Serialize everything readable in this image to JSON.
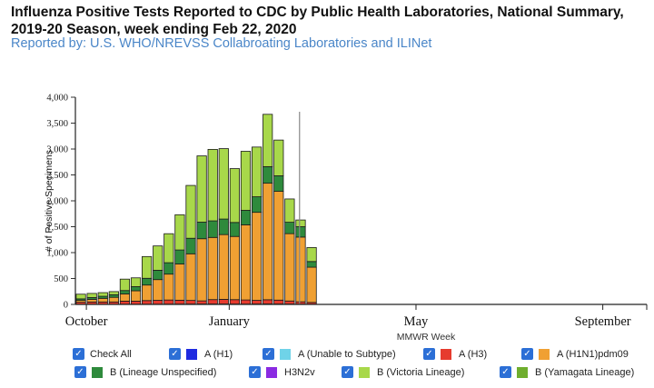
{
  "header": {
    "title": "Influenza Positive Tests Reported to CDC by Public Health Laboratories, National Summary, 2019-20 Season, week ending Feb 22, 2020",
    "subtitle": "Reported by: U.S. WHO/NREVSS Collabroating Laboratories and ILINet"
  },
  "chart_data": {
    "type": "bar",
    "stacked": true,
    "ylabel": "# of Positive Specimens",
    "xlabel": "MMWR Week",
    "ylim": [
      0,
      4000
    ],
    "yticks": [
      "0",
      "500",
      "1,000",
      "1,500",
      "2,000",
      "2,500",
      "3,000",
      "3,500",
      "4,000"
    ],
    "xticks": [
      "October",
      "January",
      "May",
      "September"
    ],
    "weeks_total": 52,
    "month_tick_weeks": [
      1,
      14,
      31,
      48
    ],
    "current_week_index": 21,
    "series": [
      {
        "name": "A (H1)",
        "color": "#1f2be0",
        "values": [
          0,
          0,
          0,
          0,
          0,
          0,
          0,
          0,
          0,
          0,
          0,
          0,
          0,
          0,
          0,
          0,
          0,
          0,
          0,
          0,
          0,
          0
        ]
      },
      {
        "name": "A (Unable to Subtype)",
        "color": "#6fd3e8",
        "values": [
          2,
          2,
          2,
          2,
          3,
          3,
          4,
          4,
          5,
          6,
          7,
          8,
          8,
          8,
          7,
          6,
          8,
          10,
          8,
          6,
          5,
          3
        ]
      },
      {
        "name": "A (H3)",
        "color": "#e63b2e",
        "values": [
          40,
          45,
          45,
          45,
          60,
          60,
          70,
          75,
          80,
          75,
          70,
          60,
          85,
          90,
          85,
          80,
          70,
          80,
          75,
          60,
          45,
          35
        ]
      },
      {
        "name": "A (H1N1)pdm09",
        "color": "#f0a033",
        "values": [
          35,
          50,
          70,
          90,
          140,
          200,
          300,
          400,
          500,
          700,
          900,
          1200,
          1200,
          1250,
          1220,
          1450,
          1700,
          2250,
          2100,
          1300,
          1250,
          680
        ]
      },
      {
        "name": "B (Lineage Unspecified)",
        "color": "#2e8a3c",
        "values": [
          30,
          35,
          40,
          50,
          65,
          80,
          130,
          180,
          220,
          270,
          300,
          320,
          320,
          300,
          270,
          280,
          300,
          320,
          300,
          220,
          200,
          110
        ]
      },
      {
        "name": "H3N2v",
        "color": "#8a2be2",
        "values": [
          0,
          0,
          0,
          0,
          0,
          0,
          0,
          0,
          0,
          0,
          0,
          0,
          0,
          0,
          0,
          0,
          0,
          0,
          0,
          0,
          0,
          0
        ]
      },
      {
        "name": "B (Victoria Lineage)",
        "color": "#a8d84a",
        "values": [
          90,
          80,
          70,
          60,
          220,
          170,
          420,
          470,
          560,
          680,
          1020,
          1280,
          1380,
          1360,
          1040,
          1140,
          960,
          1010,
          690,
          450,
          130,
          270
        ]
      },
      {
        "name": "B (Yamagata Lineage)",
        "color": "#6fae2e",
        "values": [
          0,
          0,
          0,
          0,
          0,
          0,
          0,
          0,
          0,
          0,
          0,
          0,
          0,
          0,
          0,
          0,
          0,
          0,
          0,
          0,
          0,
          0
        ]
      }
    ],
    "grid": false,
    "legend_placement": "bottom"
  },
  "legend": {
    "check_all_label": "Check All",
    "items": [
      {
        "label": "A (H1)",
        "color": "#1f2be0"
      },
      {
        "label": "A (Unable to Subtype)",
        "color": "#6fd3e8"
      },
      {
        "label": "A (H3)",
        "color": "#e63b2e"
      },
      {
        "label": "A (H1N1)pdm09",
        "color": "#f0a033"
      },
      {
        "label": "B (Lineage Unspecified)",
        "color": "#2e8a3c"
      },
      {
        "label": "H3N2v",
        "color": "#8a2be2"
      },
      {
        "label": "B (Victoria Lineage)",
        "color": "#a8d84a"
      },
      {
        "label": "B (Yamagata Lineage)",
        "color": "#6fae2e"
      }
    ]
  }
}
